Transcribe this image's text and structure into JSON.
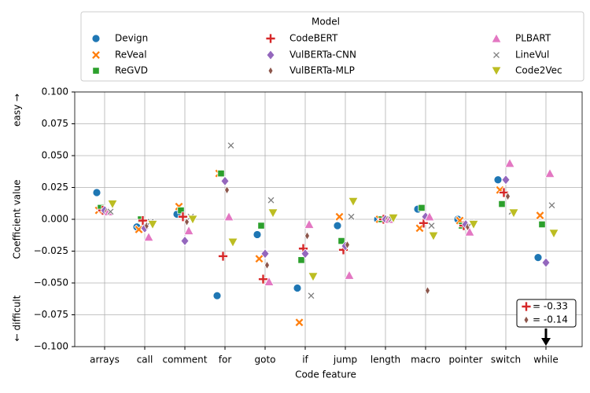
{
  "chart_data": {
    "type": "strip",
    "xlabel": "Code feature",
    "ylabel": "Coefficient value",
    "y_side_labels": {
      "top": "easy →",
      "bottom": "← difficult"
    },
    "legend_title": "Model",
    "legend": "upper center",
    "grid": true,
    "categories": [
      "arrays",
      "call",
      "comment",
      "for",
      "goto",
      "if",
      "jump",
      "length",
      "macro",
      "pointer",
      "switch",
      "while"
    ],
    "ylim": [
      -0.1,
      0.1
    ],
    "yticks": [
      {
        "value": -0.1,
        "label": "−0.100"
      },
      {
        "value": -0.075,
        "label": "−0.075"
      },
      {
        "value": -0.05,
        "label": "−0.050"
      },
      {
        "value": -0.025,
        "label": "−0.025"
      },
      {
        "value": 0,
        "label": "0.000"
      },
      {
        "value": 0.025,
        "label": "0.025"
      },
      {
        "value": 0.05,
        "label": "0.050"
      },
      {
        "value": 0.075,
        "label": "0.075"
      },
      {
        "value": 0.1,
        "label": "0.100"
      }
    ],
    "series": [
      {
        "name": "Devign",
        "color": "#1f77b4",
        "marker": "circle",
        "values": [
          0.021,
          -0.006,
          0.004,
          -0.06,
          -0.012,
          -0.054,
          -0.005,
          0.0,
          0.008,
          0.0,
          0.031,
          -0.03
        ]
      },
      {
        "name": "ReVeal",
        "color": "#ff7f0e",
        "marker": "x",
        "values": [
          0.007,
          -0.008,
          0.01,
          0.036,
          -0.031,
          -0.081,
          0.002,
          0.0,
          -0.007,
          -0.001,
          0.023,
          0.003
        ]
      },
      {
        "name": "ReGVD",
        "color": "#2ca02c",
        "marker": "square",
        "values": [
          0.009,
          0.0,
          0.007,
          0.036,
          -0.005,
          -0.032,
          -0.017,
          0.0,
          0.009,
          -0.005,
          0.012,
          -0.004
        ]
      },
      {
        "name": "CodeBERT",
        "color": "#d62728",
        "marker": "plus",
        "values": [
          0.007,
          -0.001,
          0.002,
          -0.029,
          -0.047,
          -0.023,
          -0.024,
          0.0,
          -0.003,
          -0.005,
          0.021,
          -0.33
        ],
        "value_labels": [
          null,
          null,
          null,
          null,
          null,
          null,
          null,
          null,
          null,
          null,
          null,
          "= -0.33"
        ]
      },
      {
        "name": "VulBERTa-CNN",
        "color": "#9467bd",
        "marker": "diamond",
        "values": [
          0.007,
          -0.007,
          -0.017,
          0.03,
          -0.027,
          -0.027,
          -0.021,
          0.0,
          0.002,
          -0.004,
          0.031,
          -0.034
        ]
      },
      {
        "name": "VulBERTa-MLP",
        "color": "#8c564b",
        "marker": "thindiamond",
        "values": [
          0.006,
          -0.005,
          -0.002,
          0.023,
          -0.036,
          -0.013,
          -0.02,
          0.0,
          -0.056,
          -0.006,
          0.018,
          -0.14
        ],
        "value_labels": [
          null,
          null,
          null,
          null,
          null,
          null,
          null,
          null,
          null,
          null,
          null,
          "= -0.14"
        ]
      },
      {
        "name": "PLBART",
        "color": "#e377c2",
        "marker": "triangle",
        "values": [
          0.006,
          -0.014,
          -0.009,
          0.002,
          -0.049,
          -0.004,
          -0.044,
          0.0,
          0.002,
          -0.01,
          0.044,
          0.036
        ]
      },
      {
        "name": "LineVul",
        "color": "#7f7f7f",
        "marker": "star",
        "values": [
          0.006,
          -0.002,
          0.002,
          0.058,
          0.015,
          -0.06,
          0.002,
          0.0,
          -0.005,
          -0.003,
          0.006,
          0.011
        ]
      },
      {
        "name": "Code2Vec",
        "color": "#bcbd22",
        "marker": "triangledown",
        "values": [
          0.012,
          -0.004,
          0.0,
          -0.018,
          0.005,
          -0.045,
          0.014,
          0.001,
          -0.013,
          -0.004,
          0.005,
          -0.011
        ]
      }
    ]
  }
}
